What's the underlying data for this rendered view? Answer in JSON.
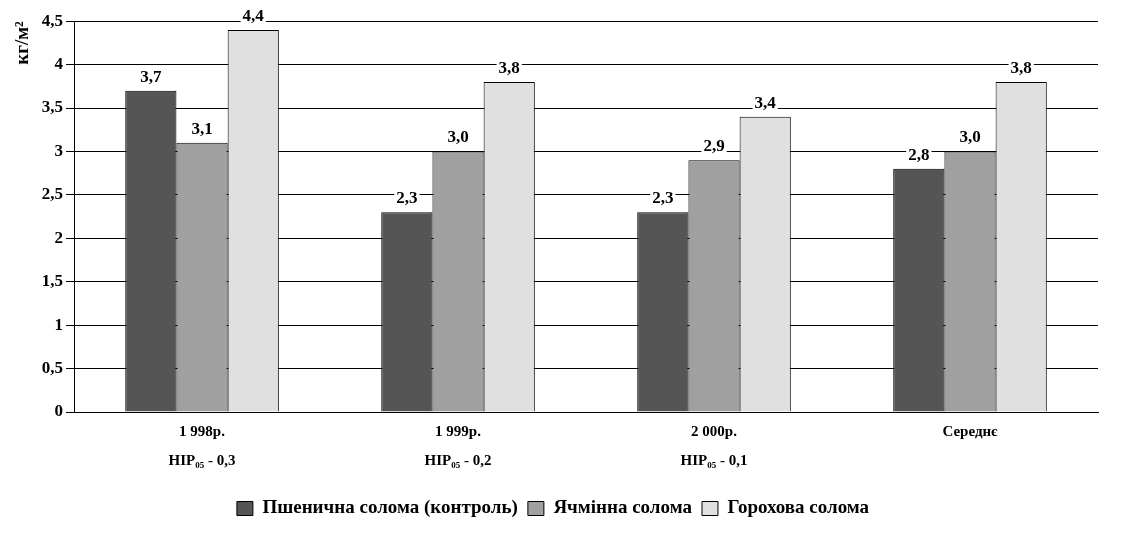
{
  "chart_data": {
    "type": "bar",
    "ylabel": "кг/м²",
    "categories": [
      "1 998р.",
      "1 999р.",
      "2 000р.",
      "Середнє"
    ],
    "series": [
      {
        "name": "Пшенична солома (контроль)",
        "color": "#555555",
        "values": [
          3.7,
          2.3,
          2.3,
          2.8
        ],
        "value_labels": [
          "3,7",
          "2,3",
          "2,3",
          "2,8"
        ]
      },
      {
        "name": "Ячмінна солома",
        "color": "#a0a0a0",
        "values": [
          3.1,
          3.0,
          2.9,
          3.0
        ],
        "value_labels": [
          "3,1",
          "3,0",
          "2,9",
          "3,0"
        ]
      },
      {
        "name": "Горохова солома",
        "color": "#e0e0e0",
        "values": [
          4.4,
          3.8,
          3.4,
          3.8
        ],
        "value_labels": [
          "4,4",
          "3,8",
          "3,4",
          "3,8"
        ]
      }
    ],
    "ylim": [
      0,
      4.5
    ],
    "yticks": [
      0,
      {
        "value": 0.5,
        "label": "0,5"
      },
      1,
      {
        "value": 1.5,
        "label": "1,5"
      },
      2,
      {
        "value": 2.5,
        "label": "2,5"
      },
      3,
      {
        "value": 3.5,
        "label": "3,5"
      },
      4,
      {
        "value": 4.5,
        "label": "4,5"
      }
    ],
    "grid": "y",
    "legend": "bottom",
    "annotations": [
      "НІР₀₅ - 0,3",
      "НІР₀₅ - 0,2",
      "НІР₀₅ - 0,1"
    ]
  }
}
